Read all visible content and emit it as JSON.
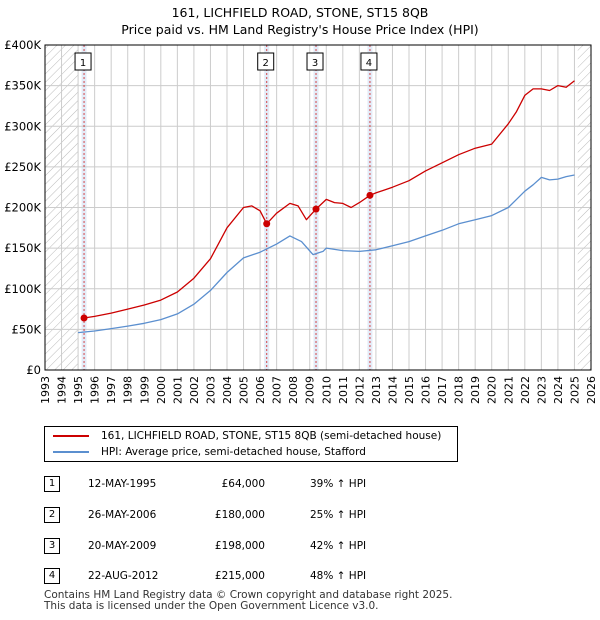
{
  "title": {
    "line1": "161, LICHFIELD ROAD, STONE, ST15 8QB",
    "line2": "Price paid vs. HM Land Registry's House Price Index (HPI)"
  },
  "colors": {
    "red": "#cc0000",
    "blue": "#5b8fcf",
    "grid": "#cccccc",
    "band": "#dce6f5"
  },
  "chart_data": {
    "type": "line",
    "title": "161, LICHFIELD ROAD, STONE, ST15 8QB — Price paid vs. HM Land Registry's House Price Index (HPI)",
    "xlim": [
      1993,
      2026
    ],
    "ylim": [
      0,
      400000
    ],
    "x_ticks": [
      "1993",
      "1994",
      "1995",
      "1996",
      "1997",
      "1998",
      "1999",
      "2000",
      "2001",
      "2002",
      "2003",
      "2004",
      "2005",
      "2006",
      "2007",
      "2008",
      "2009",
      "2010",
      "2011",
      "2012",
      "2013",
      "2014",
      "2015",
      "2016",
      "2017",
      "2018",
      "2019",
      "2020",
      "2021",
      "2022",
      "2023",
      "2024",
      "2025",
      "2026"
    ],
    "y_ticks": [
      {
        "value": 0,
        "label": "£0"
      },
      {
        "value": 50000,
        "label": "£50K"
      },
      {
        "value": 100000,
        "label": "£100K"
      },
      {
        "value": 150000,
        "label": "£150K"
      },
      {
        "value": 200000,
        "label": "£200K"
      },
      {
        "value": 250000,
        "label": "£250K"
      },
      {
        "value": 300000,
        "label": "£300K"
      },
      {
        "value": 350000,
        "label": "£350K"
      },
      {
        "value": 400000,
        "label": "£400K"
      }
    ],
    "hatched_before": 1995.0,
    "hatched_after": 2025.2,
    "series": [
      {
        "name": "161, LICHFIELD ROAD, STONE, ST15 8QB (semi-detached house)",
        "color": "#cc0000",
        "x": [
          1995.36,
          1996,
          1997,
          1998,
          1999,
          2000,
          2001,
          2002,
          2003,
          2004,
          2005,
          2005.5,
          2006.0,
          2006.4,
          2007,
          2007.8,
          2008.3,
          2008.8,
          2009.38,
          2010,
          2010.5,
          2011,
          2011.5,
          2012,
          2012.64,
          2013,
          2014,
          2015,
          2016,
          2017,
          2018,
          2019,
          2020,
          2021,
          2021.5,
          2022,
          2022.5,
          2023,
          2023.5,
          2024,
          2024.5,
          2025
        ],
        "y": [
          64000,
          66000,
          70000,
          75000,
          80000,
          86000,
          96000,
          113000,
          137000,
          175000,
          200000,
          202000,
          196000,
          180000,
          193000,
          205000,
          202000,
          185000,
          198000,
          210000,
          206000,
          205000,
          200000,
          206000,
          215000,
          218000,
          225000,
          233000,
          245000,
          255000,
          265000,
          273000,
          278000,
          303000,
          318000,
          338000,
          346000,
          346000,
          344000,
          350000,
          348000,
          356000
        ]
      },
      {
        "name": "HPI: Average price, semi-detached house, Stafford",
        "color": "#5b8fcf",
        "x": [
          1995,
          1996,
          1997,
          1998,
          1999,
          2000,
          2001,
          2002,
          2003,
          2004,
          2005,
          2006,
          2007,
          2007.8,
          2008.5,
          2009.2,
          2009.8,
          2010,
          2011,
          2012,
          2013,
          2014,
          2015,
          2016,
          2017,
          2018,
          2019,
          2020,
          2021,
          2021.5,
          2022,
          2022.5,
          2023,
          2023.5,
          2024,
          2024.5,
          2025
        ],
        "y": [
          46000,
          48000,
          51000,
          54000,
          57500,
          62000,
          69000,
          81000,
          98000,
          120000,
          138000,
          145000,
          155000,
          165000,
          158000,
          142000,
          146000,
          150000,
          147000,
          146000,
          148000,
          153000,
          158000,
          165000,
          172000,
          180000,
          185000,
          190000,
          200000,
          210000,
          220000,
          228000,
          237000,
          234000,
          235000,
          238000,
          240000
        ]
      }
    ],
    "markers": [
      {
        "label": "1",
        "x": 1995.36,
        "y": 64000
      },
      {
        "label": "2",
        "x": 2006.4,
        "y": 180000
      },
      {
        "label": "3",
        "x": 2009.38,
        "y": 198000
      },
      {
        "label": "4",
        "x": 2012.64,
        "y": 215000
      }
    ]
  },
  "legend": {
    "red_label": "161, LICHFIELD ROAD, STONE, ST15 8QB (semi-detached house)",
    "blue_label": "HPI: Average price, semi-detached house, Stafford"
  },
  "transactions": [
    {
      "num": "1",
      "date": "12-MAY-1995",
      "price": "£64,000",
      "hpi": "39% ↑ HPI"
    },
    {
      "num": "2",
      "date": "26-MAY-2006",
      "price": "£180,000",
      "hpi": "25% ↑ HPI"
    },
    {
      "num": "3",
      "date": "20-MAY-2009",
      "price": "£198,000",
      "hpi": "42% ↑ HPI"
    },
    {
      "num": "4",
      "date": "22-AUG-2012",
      "price": "£215,000",
      "hpi": "48% ↑ HPI"
    }
  ],
  "footer": {
    "line1": "Contains HM Land Registry data © Crown copyright and database right 2025.",
    "line2": "This data is licensed under the Open Government Licence v3.0."
  }
}
